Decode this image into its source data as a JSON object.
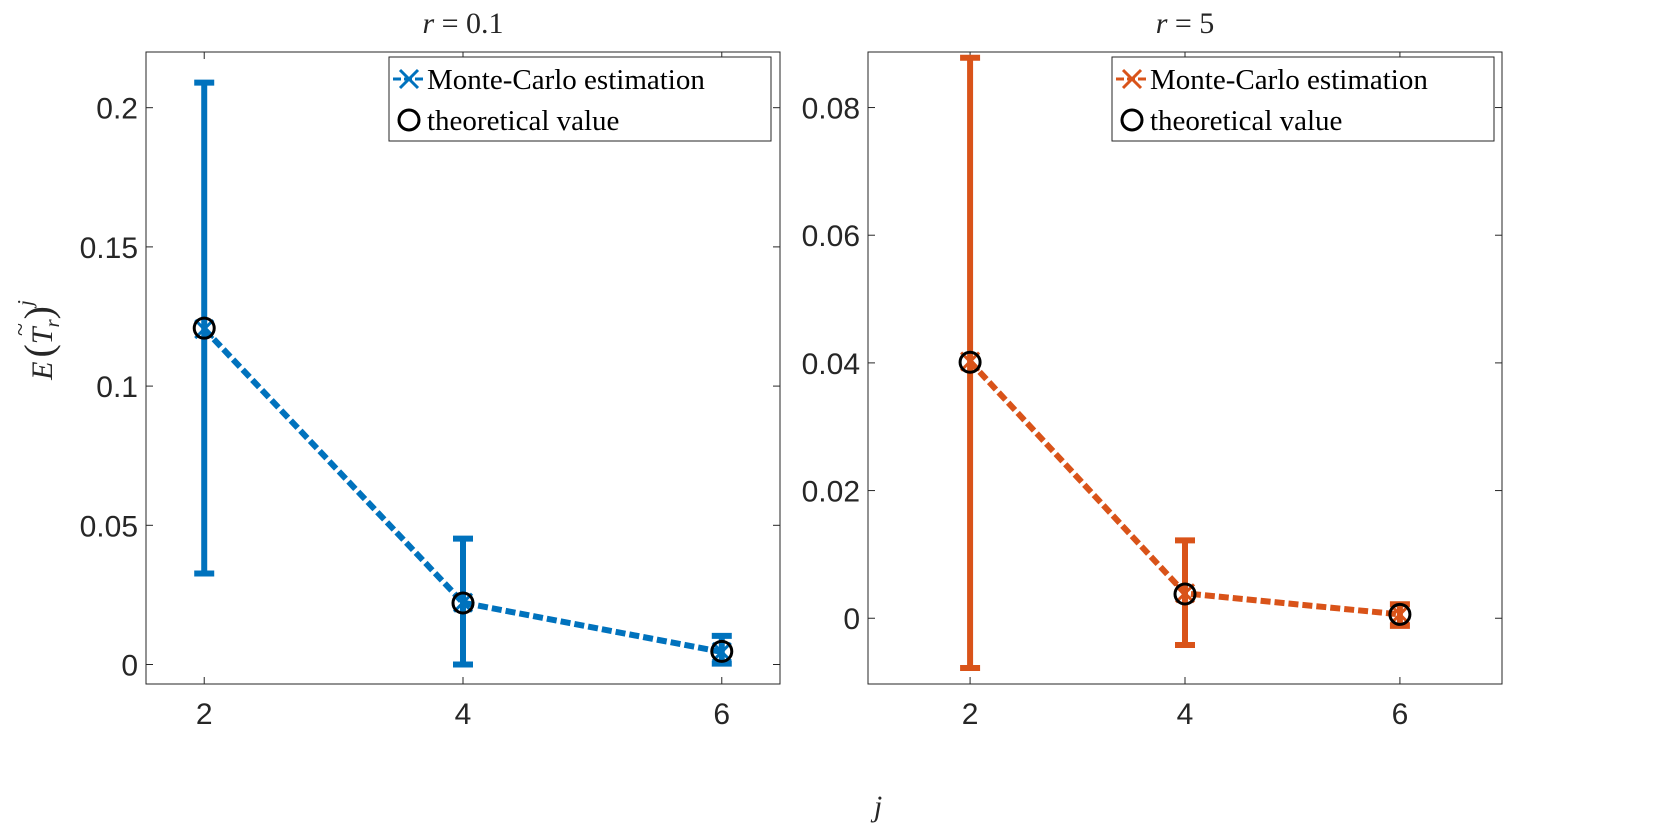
{
  "figure": {
    "x_label": "j",
    "y_label": {
      "prefix": "E",
      "symbol": "T",
      "subscript": "r",
      "exponent": "j"
    }
  },
  "chart_data": [
    {
      "type": "line",
      "title": "r = 0.1",
      "title_var": "r",
      "title_value": "0.1",
      "color": "#0072BD",
      "x": [
        2,
        4,
        6
      ],
      "xlim": [
        1.55,
        6.45
      ],
      "ylim": [
        -0.007,
        0.22
      ],
      "x_ticks": [
        2,
        4,
        6
      ],
      "y_ticks": [
        0,
        0.05,
        0.1,
        0.15,
        0.2
      ],
      "y_tick_labels": [
        "0",
        "0.05",
        "0.1",
        "0.15",
        "0.2"
      ],
      "series": [
        {
          "name": "Monte-Carlo estimation",
          "marker": "x",
          "values": [
            0.1205,
            0.0222,
            0.0045
          ],
          "error_low": [
            0.0327,
            0.0,
            0.0003
          ],
          "error_high": [
            0.209,
            0.0452,
            0.0103
          ]
        },
        {
          "name": "theoretical value",
          "marker": "o",
          "values": [
            0.1208,
            0.0221,
            0.0047
          ]
        }
      ],
      "legend": {
        "position": "top-right",
        "entries": [
          "Monte-Carlo estimation",
          "theoretical value"
        ]
      }
    },
    {
      "type": "line",
      "title": "r = 5",
      "title_var": "r",
      "title_value": "5",
      "color": "#D95319",
      "x": [
        2,
        4,
        6
      ],
      "xlim": [
        1.05,
        6.95
      ],
      "ylim": [
        -0.0103,
        0.0887
      ],
      "x_ticks": [
        2,
        4,
        6
      ],
      "y_ticks": [
        0,
        0.02,
        0.04,
        0.06,
        0.08
      ],
      "y_tick_labels": [
        "0",
        "0.02",
        "0.04",
        "0.06",
        "0.08"
      ],
      "series": [
        {
          "name": "Monte-Carlo estimation",
          "marker": "x",
          "values": [
            0.0402,
            0.0039,
            0.0006
          ],
          "error_low": [
            -0.0078,
            -0.0042,
            -0.0012
          ],
          "error_high": [
            0.0878,
            0.0122,
            0.0022
          ]
        },
        {
          "name": "theoretical value",
          "marker": "o",
          "values": [
            0.0401,
            0.0038,
            0.0006
          ]
        }
      ],
      "legend": {
        "position": "top-right",
        "entries": [
          "Monte-Carlo estimation",
          "theoretical value"
        ]
      }
    }
  ]
}
